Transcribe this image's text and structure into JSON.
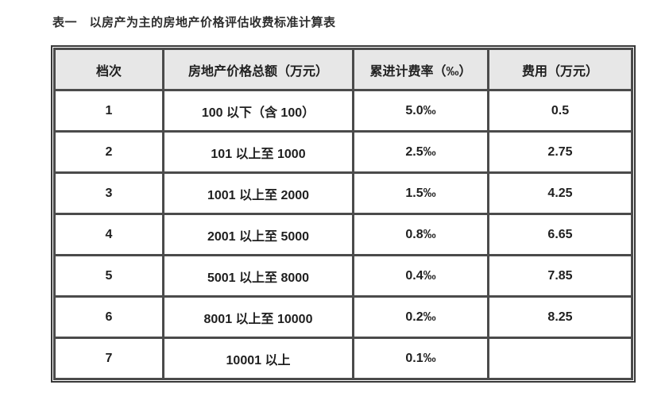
{
  "title": "表一　以房产为主的房地产价格评估收费标准计算表",
  "table": {
    "headers": [
      "档次",
      "房地产价格总额（万元）",
      "累进计费率（‰）",
      "费用（万元）"
    ],
    "rows": [
      [
        "1",
        "100 以下（含 100）",
        "5.0‰",
        "0.5"
      ],
      [
        "2",
        "101 以上至 1000",
        "2.5‰",
        "2.75"
      ],
      [
        "3",
        "1001 以上至 2000",
        "1.5‰",
        "4.25"
      ],
      [
        "4",
        "2001 以上至 5000",
        "0.8‰",
        "6.65"
      ],
      [
        "5",
        "5001 以上至 8000",
        "0.4‰",
        "7.85"
      ],
      [
        "6",
        "8001 以上至 10000",
        "0.2‰",
        "8.25"
      ],
      [
        "7",
        "10001 以上",
        "0.1‰",
        ""
      ]
    ]
  },
  "colors": {
    "page_bg": "#ffffff",
    "header_bg": "#e7e7e7",
    "outer_border": "#383838",
    "cell_border": "#4b4b4b",
    "text": "#1f1f1f",
    "title_text": "#2e2e2e"
  },
  "chart_data": {
    "type": "table",
    "title": "表一　以房产为主的房地产价格评估收费标准计算表",
    "columns": [
      "档次",
      "房地产价格总额（万元）",
      "累进计费率（‰）",
      "费用（万元）"
    ],
    "rows": [
      [
        "1",
        "100 以下（含 100）",
        "5.0‰",
        "0.5"
      ],
      [
        "2",
        "101 以上至 1000",
        "2.5‰",
        "2.75"
      ],
      [
        "3",
        "1001 以上至 2000",
        "1.5‰",
        "4.25"
      ],
      [
        "4",
        "2001 以上至 5000",
        "0.8‰",
        "6.65"
      ],
      [
        "5",
        "5001 以上至 8000",
        "0.4‰",
        "7.85"
      ],
      [
        "6",
        "8001 以上至 10000",
        "0.2‰",
        "8.25"
      ],
      [
        "7",
        "10001 以上",
        "0.1‰",
        ""
      ]
    ]
  }
}
